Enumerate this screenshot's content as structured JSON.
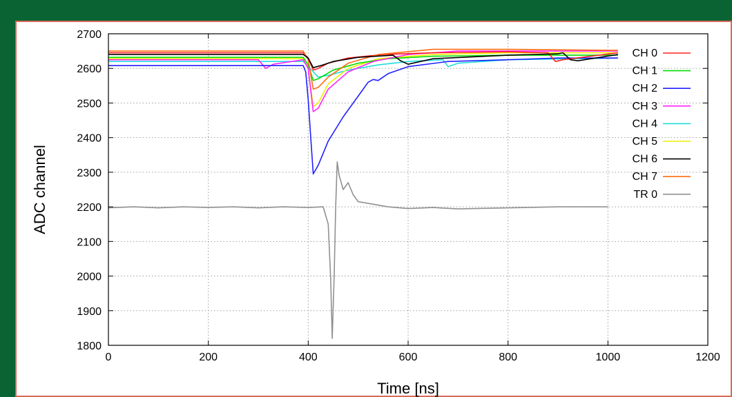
{
  "colors": {
    "background": "#0a6333",
    "panel_border": "#d86a5a",
    "grid": "#9a9a9a"
  },
  "chart_data": {
    "type": "line",
    "title": "",
    "xlabel": "Time [ns]",
    "ylabel": "ADC channel",
    "xlim": [
      0,
      1200
    ],
    "ylim": [
      1800,
      2700
    ],
    "x_ticks": [
      0,
      200,
      400,
      600,
      800,
      1000,
      1200
    ],
    "y_ticks": [
      1800,
      1900,
      2000,
      2100,
      2200,
      2300,
      2400,
      2500,
      2600,
      2700
    ],
    "grid": "dotted",
    "legend_position": "top-right",
    "series": [
      {
        "name": "CH 0",
        "color": "#ff2020",
        "points": [
          [
            0,
            2645
          ],
          [
            100,
            2645
          ],
          [
            200,
            2645
          ],
          [
            300,
            2645
          ],
          [
            390,
            2645
          ],
          [
            400,
            2630
          ],
          [
            410,
            2595
          ],
          [
            420,
            2600
          ],
          [
            440,
            2615
          ],
          [
            480,
            2630
          ],
          [
            550,
            2640
          ],
          [
            650,
            2645
          ],
          [
            800,
            2648
          ],
          [
            880,
            2645
          ],
          [
            895,
            2620
          ],
          [
            910,
            2625
          ],
          [
            1020,
            2645
          ]
        ]
      },
      {
        "name": "CH 1",
        "color": "#00dd00",
        "points": [
          [
            0,
            2632
          ],
          [
            100,
            2632
          ],
          [
            200,
            2632
          ],
          [
            300,
            2632
          ],
          [
            390,
            2632
          ],
          [
            400,
            2610
          ],
          [
            410,
            2565
          ],
          [
            420,
            2570
          ],
          [
            450,
            2595
          ],
          [
            500,
            2615
          ],
          [
            560,
            2628
          ],
          [
            650,
            2635
          ],
          [
            800,
            2638
          ],
          [
            1020,
            2638
          ]
        ]
      },
      {
        "name": "CH 2",
        "color": "#1f1fff",
        "points": [
          [
            0,
            2608
          ],
          [
            100,
            2608
          ],
          [
            200,
            2608
          ],
          [
            300,
            2608
          ],
          [
            390,
            2608
          ],
          [
            395,
            2590
          ],
          [
            400,
            2510
          ],
          [
            405,
            2400
          ],
          [
            410,
            2295
          ],
          [
            420,
            2320
          ],
          [
            440,
            2390
          ],
          [
            470,
            2460
          ],
          [
            510,
            2540
          ],
          [
            520,
            2560
          ],
          [
            530,
            2568
          ],
          [
            540,
            2565
          ],
          [
            560,
            2585
          ],
          [
            600,
            2605
          ],
          [
            680,
            2620
          ],
          [
            800,
            2625
          ],
          [
            900,
            2630
          ],
          [
            1020,
            2630
          ]
        ]
      },
      {
        "name": "CH 3",
        "color": "#ff22ff",
        "points": [
          [
            0,
            2625
          ],
          [
            100,
            2625
          ],
          [
            200,
            2625
          ],
          [
            300,
            2625
          ],
          [
            315,
            2600
          ],
          [
            330,
            2612
          ],
          [
            390,
            2625
          ],
          [
            400,
            2600
          ],
          [
            410,
            2475
          ],
          [
            420,
            2485
          ],
          [
            440,
            2540
          ],
          [
            480,
            2590
          ],
          [
            530,
            2620
          ],
          [
            600,
            2640
          ],
          [
            700,
            2650
          ],
          [
            800,
            2650
          ],
          [
            900,
            2650
          ],
          [
            1020,
            2650
          ]
        ]
      },
      {
        "name": "CH 4",
        "color": "#22dddd",
        "points": [
          [
            0,
            2620
          ],
          [
            100,
            2620
          ],
          [
            200,
            2620
          ],
          [
            300,
            2620
          ],
          [
            390,
            2620
          ],
          [
            400,
            2605
          ],
          [
            420,
            2575
          ],
          [
            440,
            2580
          ],
          [
            480,
            2595
          ],
          [
            540,
            2610
          ],
          [
            600,
            2620
          ],
          [
            670,
            2625
          ],
          [
            680,
            2605
          ],
          [
            700,
            2615
          ],
          [
            800,
            2625
          ],
          [
            1020,
            2630
          ]
        ]
      },
      {
        "name": "CH 5",
        "color": "#eeee00",
        "points": [
          [
            0,
            2628
          ],
          [
            100,
            2628
          ],
          [
            200,
            2628
          ],
          [
            300,
            2628
          ],
          [
            390,
            2628
          ],
          [
            400,
            2600
          ],
          [
            410,
            2490
          ],
          [
            420,
            2500
          ],
          [
            440,
            2555
          ],
          [
            480,
            2600
          ],
          [
            540,
            2628
          ],
          [
            650,
            2640
          ],
          [
            800,
            2645
          ],
          [
            1020,
            2645
          ]
        ]
      },
      {
        "name": "CH 6",
        "color": "#000000",
        "points": [
          [
            0,
            2640
          ],
          [
            100,
            2640
          ],
          [
            200,
            2640
          ],
          [
            300,
            2640
          ],
          [
            390,
            2640
          ],
          [
            400,
            2630
          ],
          [
            410,
            2602
          ],
          [
            425,
            2608
          ],
          [
            450,
            2620
          ],
          [
            500,
            2632
          ],
          [
            570,
            2638
          ],
          [
            585,
            2622
          ],
          [
            600,
            2612
          ],
          [
            650,
            2628
          ],
          [
            800,
            2638
          ],
          [
            900,
            2642
          ],
          [
            910,
            2645
          ],
          [
            925,
            2625
          ],
          [
            940,
            2622
          ],
          [
            1020,
            2640
          ]
        ]
      },
      {
        "name": "CH 7",
        "color": "#ff6a10",
        "points": [
          [
            0,
            2650
          ],
          [
            100,
            2650
          ],
          [
            200,
            2650
          ],
          [
            300,
            2650
          ],
          [
            390,
            2650
          ],
          [
            400,
            2625
          ],
          [
            410,
            2540
          ],
          [
            420,
            2545
          ],
          [
            440,
            2575
          ],
          [
            480,
            2615
          ],
          [
            540,
            2640
          ],
          [
            650,
            2655
          ],
          [
            800,
            2655
          ],
          [
            1020,
            2652
          ]
        ]
      },
      {
        "name": "TR 0",
        "color": "#909090",
        "points": [
          [
            0,
            2197
          ],
          [
            50,
            2200
          ],
          [
            100,
            2197
          ],
          [
            150,
            2200
          ],
          [
            200,
            2198
          ],
          [
            250,
            2200
          ],
          [
            300,
            2197
          ],
          [
            350,
            2200
          ],
          [
            400,
            2198
          ],
          [
            430,
            2200
          ],
          [
            440,
            2150
          ],
          [
            445,
            1990
          ],
          [
            448,
            1820
          ],
          [
            452,
            2000
          ],
          [
            455,
            2200
          ],
          [
            458,
            2330
          ],
          [
            462,
            2290
          ],
          [
            470,
            2250
          ],
          [
            480,
            2270
          ],
          [
            490,
            2235
          ],
          [
            500,
            2215
          ],
          [
            520,
            2210
          ],
          [
            540,
            2205
          ],
          [
            560,
            2200
          ],
          [
            600,
            2195
          ],
          [
            650,
            2198
          ],
          [
            700,
            2194
          ],
          [
            800,
            2197
          ],
          [
            900,
            2200
          ],
          [
            1000,
            2200
          ]
        ]
      }
    ]
  }
}
